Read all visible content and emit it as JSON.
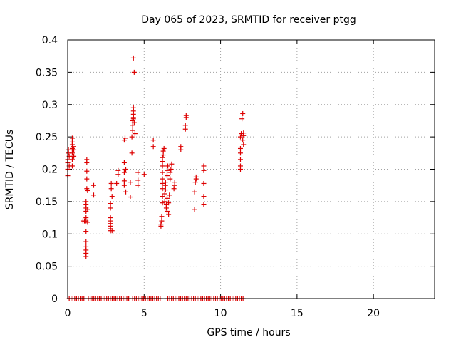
{
  "chart_data": {
    "type": "scatter",
    "title": "Day 065 of 2023, SRMTID for receiver ptgg",
    "xlabel": "GPS time / hours",
    "ylabel": "SRMTID / TECUs",
    "xlim": [
      0,
      24
    ],
    "ylim": [
      0,
      0.4
    ],
    "x_ticks": [
      0,
      5,
      10,
      15,
      20
    ],
    "x_tick_labels": [
      "0",
      "5",
      "10",
      "15",
      "20"
    ],
    "y_ticks": [
      0,
      0.05,
      0.1,
      0.15,
      0.2,
      0.25,
      0.3,
      0.35,
      0.4
    ],
    "y_tick_labels": [
      "0",
      "0.05",
      "0.1",
      "0.15",
      "0.2",
      "0.25",
      "0.3",
      "0.35",
      "0.4"
    ],
    "grid": true,
    "marker": "+",
    "series": [
      {
        "name": "SRMTID",
        "color": "#dd0000",
        "points": [
          [
            0.0,
            0.19
          ],
          [
            0.0,
            0.2
          ],
          [
            0.0,
            0.21
          ],
          [
            0.0,
            0.215
          ],
          [
            0.05,
            0.225
          ],
          [
            0.05,
            0.23
          ],
          [
            0.1,
            0.205
          ],
          [
            0.1,
            0.22
          ],
          [
            0.3,
            0.205
          ],
          [
            0.3,
            0.215
          ],
          [
            0.3,
            0.225
          ],
          [
            0.3,
            0.232
          ],
          [
            0.3,
            0.238
          ],
          [
            0.3,
            0.242
          ],
          [
            0.3,
            0.248
          ],
          [
            0.35,
            0.235
          ],
          [
            0.4,
            0.23
          ],
          [
            0.4,
            0.22
          ],
          [
            1.0,
            0.12
          ],
          [
            1.1,
            0.12
          ],
          [
            1.2,
            0.065
          ],
          [
            1.2,
            0.07
          ],
          [
            1.2,
            0.075
          ],
          [
            1.2,
            0.08
          ],
          [
            1.2,
            0.088
          ],
          [
            1.2,
            0.104
          ],
          [
            1.2,
            0.12
          ],
          [
            1.2,
            0.125
          ],
          [
            1.2,
            0.135
          ],
          [
            1.2,
            0.14
          ],
          [
            1.2,
            0.145
          ],
          [
            1.2,
            0.15
          ],
          [
            1.25,
            0.17
          ],
          [
            1.25,
            0.185
          ],
          [
            1.25,
            0.197
          ],
          [
            1.25,
            0.21
          ],
          [
            1.25,
            0.215
          ],
          [
            1.3,
            0.118
          ],
          [
            1.3,
            0.138
          ],
          [
            1.3,
            0.167
          ],
          [
            1.7,
            0.16
          ],
          [
            1.7,
            0.175
          ],
          [
            2.8,
            0.105
          ],
          [
            2.8,
            0.108
          ],
          [
            2.8,
            0.112
          ],
          [
            2.8,
            0.116
          ],
          [
            2.8,
            0.12
          ],
          [
            2.8,
            0.125
          ],
          [
            2.8,
            0.14
          ],
          [
            2.8,
            0.147
          ],
          [
            2.85,
            0.17
          ],
          [
            2.85,
            0.178
          ],
          [
            2.9,
            0.105
          ],
          [
            2.9,
            0.158
          ],
          [
            3.2,
            0.178
          ],
          [
            3.3,
            0.192
          ],
          [
            3.3,
            0.198
          ],
          [
            3.7,
            0.175
          ],
          [
            3.7,
            0.182
          ],
          [
            3.7,
            0.195
          ],
          [
            3.7,
            0.21
          ],
          [
            3.7,
            0.245
          ],
          [
            3.75,
            0.248
          ],
          [
            3.8,
            0.165
          ],
          [
            3.8,
            0.2
          ],
          [
            4.1,
            0.157
          ],
          [
            4.1,
            0.18
          ],
          [
            4.2,
            0.225
          ],
          [
            4.2,
            0.25
          ],
          [
            4.25,
            0.26
          ],
          [
            4.25,
            0.268
          ],
          [
            4.25,
            0.275
          ],
          [
            4.3,
            0.278
          ],
          [
            4.3,
            0.28
          ],
          [
            4.3,
            0.285
          ],
          [
            4.3,
            0.29
          ],
          [
            4.3,
            0.295
          ],
          [
            4.35,
            0.272
          ],
          [
            4.4,
            0.255
          ],
          [
            4.35,
            0.35
          ],
          [
            4.3,
            0.372
          ],
          [
            4.6,
            0.175
          ],
          [
            4.6,
            0.183
          ],
          [
            4.6,
            0.195
          ],
          [
            5.0,
            0.192
          ],
          [
            5.6,
            0.235
          ],
          [
            5.6,
            0.245
          ],
          [
            6.1,
            0.112
          ],
          [
            6.1,
            0.115
          ],
          [
            6.15,
            0.12
          ],
          [
            6.15,
            0.127
          ],
          [
            6.2,
            0.148
          ],
          [
            6.2,
            0.158
          ],
          [
            6.2,
            0.17
          ],
          [
            6.2,
            0.178
          ],
          [
            6.2,
            0.185
          ],
          [
            6.2,
            0.195
          ],
          [
            6.2,
            0.205
          ],
          [
            6.2,
            0.212
          ],
          [
            6.2,
            0.218
          ],
          [
            6.25,
            0.222
          ],
          [
            6.25,
            0.228
          ],
          [
            6.3,
            0.232
          ],
          [
            6.35,
            0.15
          ],
          [
            6.35,
            0.162
          ],
          [
            6.4,
            0.168
          ],
          [
            6.4,
            0.175
          ],
          [
            6.4,
            0.18
          ],
          [
            6.45,
            0.14
          ],
          [
            6.45,
            0.145
          ],
          [
            6.5,
            0.135
          ],
          [
            6.5,
            0.155
          ],
          [
            6.5,
            0.19
          ],
          [
            6.5,
            0.198
          ],
          [
            6.55,
            0.205
          ],
          [
            6.6,
            0.13
          ],
          [
            6.6,
            0.148
          ],
          [
            6.65,
            0.16
          ],
          [
            6.7,
            0.185
          ],
          [
            6.7,
            0.195
          ],
          [
            6.75,
            0.2
          ],
          [
            6.8,
            0.208
          ],
          [
            6.95,
            0.17
          ],
          [
            7.0,
            0.175
          ],
          [
            7.0,
            0.18
          ],
          [
            7.4,
            0.23
          ],
          [
            7.4,
            0.235
          ],
          [
            7.7,
            0.262
          ],
          [
            7.7,
            0.268
          ],
          [
            7.75,
            0.28
          ],
          [
            7.75,
            0.283
          ],
          [
            8.3,
            0.138
          ],
          [
            8.3,
            0.165
          ],
          [
            8.35,
            0.18
          ],
          [
            8.4,
            0.185
          ],
          [
            8.4,
            0.188
          ],
          [
            8.9,
            0.145
          ],
          [
            8.9,
            0.158
          ],
          [
            8.9,
            0.178
          ],
          [
            8.9,
            0.198
          ],
          [
            8.9,
            0.205
          ],
          [
            11.3,
            0.2
          ],
          [
            11.3,
            0.205
          ],
          [
            11.3,
            0.215
          ],
          [
            11.3,
            0.225
          ],
          [
            11.3,
            0.232
          ],
          [
            11.3,
            0.25
          ],
          [
            11.35,
            0.255
          ],
          [
            11.4,
            0.278
          ],
          [
            11.45,
            0.245
          ],
          [
            11.5,
            0.238
          ],
          [
            11.5,
            0.252
          ],
          [
            11.5,
            0.256
          ],
          [
            11.45,
            0.286
          ]
        ]
      },
      {
        "name": "zero-baseline",
        "color": "#dd0000",
        "x_segments": [
          [
            0.1,
            1.1
          ],
          [
            1.35,
            4.0
          ],
          [
            4.25,
            6.1
          ],
          [
            6.55,
            11.5
          ]
        ],
        "x_step": 0.12,
        "y": 0
      }
    ]
  }
}
